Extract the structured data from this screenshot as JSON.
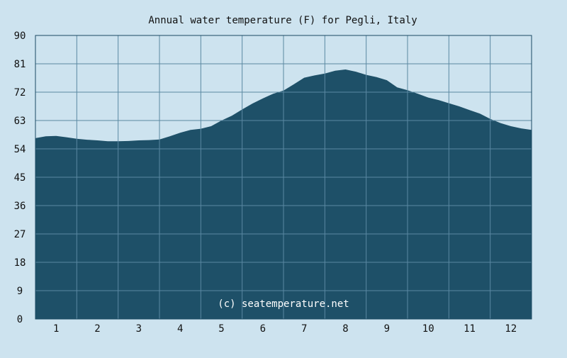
{
  "chart_data": {
    "type": "area",
    "title": "Annual water temperature (F) for Pegli, Italy",
    "xlabel": "",
    "ylabel": "",
    "x_ticks": [
      "1",
      "2",
      "3",
      "4",
      "5",
      "6",
      "7",
      "8",
      "9",
      "10",
      "11",
      "12"
    ],
    "y_ticks": [
      "0",
      "9",
      "18",
      "27",
      "36",
      "45",
      "54",
      "63",
      "72",
      "81",
      "90"
    ],
    "ylim": [
      0,
      90
    ],
    "xlim": [
      0.5,
      12.5
    ],
    "grid": true,
    "series": [
      {
        "x": [
          0.5,
          0.75,
          1.0,
          1.25,
          1.5,
          1.75,
          2.0,
          2.25,
          2.5,
          2.75,
          3.0,
          3.25,
          3.5,
          3.75,
          4.0,
          4.25,
          4.5,
          4.75,
          5.0,
          5.25,
          5.5,
          5.75,
          6.0,
          6.25,
          6.5,
          6.75,
          7.0,
          7.25,
          7.5,
          7.75,
          8.0,
          8.25,
          8.5,
          8.75,
          9.0,
          9.25,
          9.5,
          9.75,
          10.0,
          10.25,
          10.5,
          10.75,
          11.0,
          11.25,
          11.5,
          11.75,
          12.0,
          12.25,
          12.5
        ],
        "values": [
          57.4,
          58.0,
          58.1,
          57.7,
          57.2,
          56.9,
          56.7,
          56.4,
          56.4,
          56.5,
          56.7,
          56.8,
          57.0,
          58.0,
          59.1,
          60.0,
          60.4,
          61.2,
          63.0,
          64.5,
          66.5,
          68.4,
          70.0,
          71.5,
          72.5,
          74.5,
          76.6,
          77.3,
          77.9,
          78.8,
          79.2,
          78.5,
          77.5,
          76.8,
          75.8,
          73.5,
          72.6,
          71.5,
          70.3,
          69.5,
          68.5,
          67.5,
          66.3,
          65.2,
          63.5,
          62.2,
          61.2,
          60.5,
          60.0
        ]
      }
    ],
    "colors": {
      "background": "#cde3ef",
      "area": "#1e5068",
      "grid": "#5a88a2",
      "axis": "#1c4a63"
    },
    "annotation": "(c) seatemperature.net"
  }
}
